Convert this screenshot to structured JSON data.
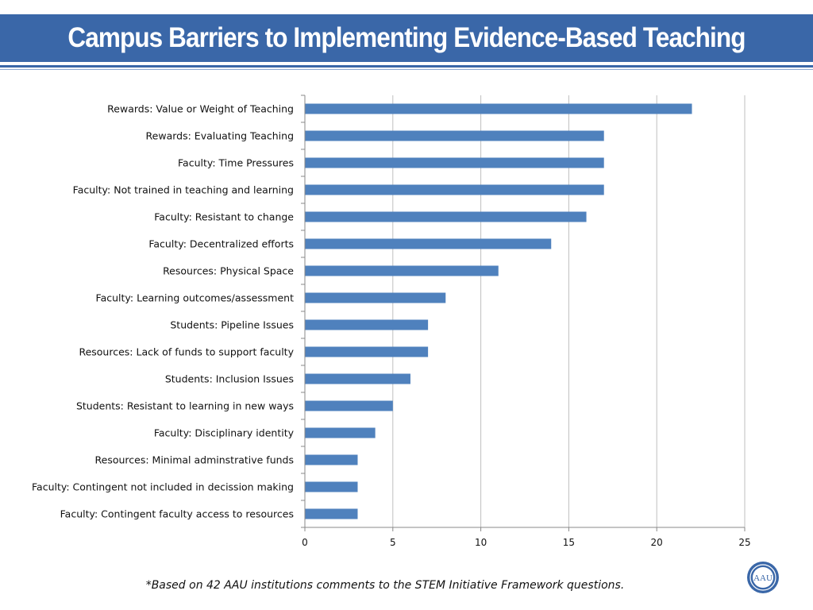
{
  "header": {
    "title": "Campus Barriers to Implementing Evidence-Based Teaching"
  },
  "footnote": "*Based on 42 AAU institutions comments to the STEM Initiative Framework questions.",
  "logo": {
    "text": "AAU",
    "icon": "aau-seal-icon"
  },
  "colors": {
    "accent": "#3a67a8",
    "bar": "#4f81bd",
    "grid": "#bfbfbf"
  },
  "chart_data": {
    "type": "bar",
    "orientation": "horizontal",
    "categories": [
      "Rewards: Value or Weight of Teaching",
      "Rewards: Evaluating Teaching",
      "Faculty: Time Pressures",
      "Faculty: Not trained in teaching and learning",
      "Faculty: Resistant to change",
      "Faculty: Decentralized efforts",
      "Resources: Physical Space",
      "Faculty: Learning outcomes/assessment",
      "Students: Pipeline Issues",
      "Resources: Lack of funds to support faculty",
      "Students: Inclusion Issues",
      "Students: Resistant to learning in new ways",
      "Faculty: Disciplinary identity",
      "Resources: Minimal adminstrative funds",
      "Faculty: Contingent not included in decission making",
      "Faculty: Contingent faculty access to resources"
    ],
    "values": [
      22,
      17,
      17,
      17,
      16,
      14,
      11,
      8,
      7,
      7,
      6,
      5,
      4,
      3,
      3,
      3
    ],
    "xlim": [
      0,
      25
    ],
    "xticks": [
      0,
      5,
      10,
      15,
      20,
      25
    ],
    "grid": "vertical",
    "legend": "none"
  }
}
